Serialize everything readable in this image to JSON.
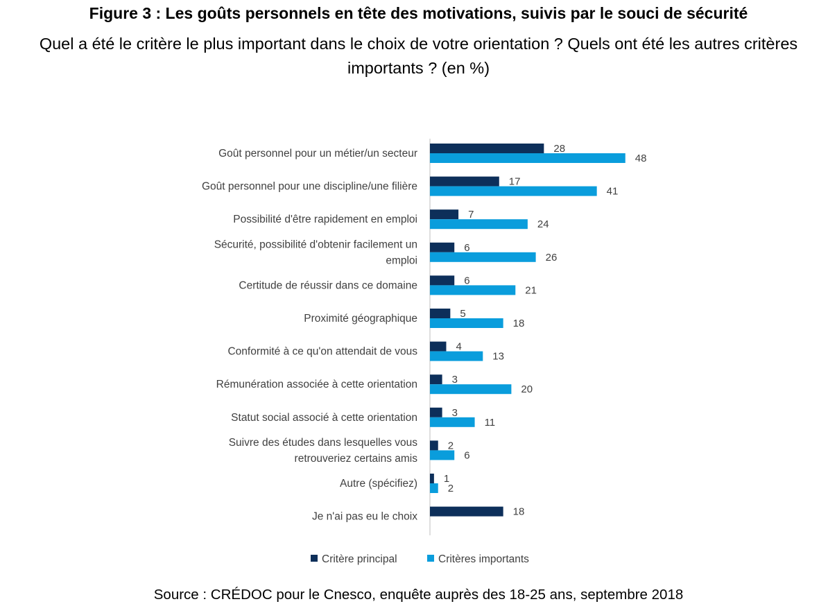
{
  "title": "Figure 3 : Les goûts personnels en tête des motivations, suivis par le souci de sécurité",
  "subtitle": "Quel a été le critère le plus important dans le choix de votre orientation ? Quels ont été les autres critères importants ? (en %)",
  "source": "Source : CRÉDOC pour le Cnesco, enquête auprès des 18-25 ans, septembre 2018",
  "colors": {
    "principal": "#0d2f5a",
    "importants": "#0a9ddc"
  },
  "chart_data": {
    "type": "bar",
    "orientation": "horizontal",
    "categories": [
      [
        "Goût personnel pour un métier/un secteur"
      ],
      [
        "Goût personnel pour une discipline/une filière"
      ],
      [
        "Possibilité d'être rapidement en emploi"
      ],
      [
        "Sécurité, possibilité d'obtenir facilement un",
        "emploi"
      ],
      [
        "Certitude de réussir dans ce domaine"
      ],
      [
        "Proximité géographique"
      ],
      [
        "Conformité à ce qu'on attendait de vous"
      ],
      [
        "Rémunération associée à cette orientation"
      ],
      [
        "Statut social associé à cette orientation"
      ],
      [
        "Suivre des études dans lesquelles vous",
        "retrouveriez certains amis"
      ],
      [
        "Autre (spécifiez)"
      ],
      [
        "Je n'ai pas eu le choix"
      ]
    ],
    "series": [
      {
        "name": "Critère principal",
        "values": [
          28,
          17,
          7,
          6,
          6,
          5,
          4,
          3,
          3,
          2,
          1,
          18
        ]
      },
      {
        "name": "Critères importants",
        "values": [
          48,
          41,
          24,
          26,
          21,
          18,
          13,
          20,
          11,
          6,
          2,
          null
        ]
      }
    ],
    "legend": "bottom",
    "grid": false
  }
}
